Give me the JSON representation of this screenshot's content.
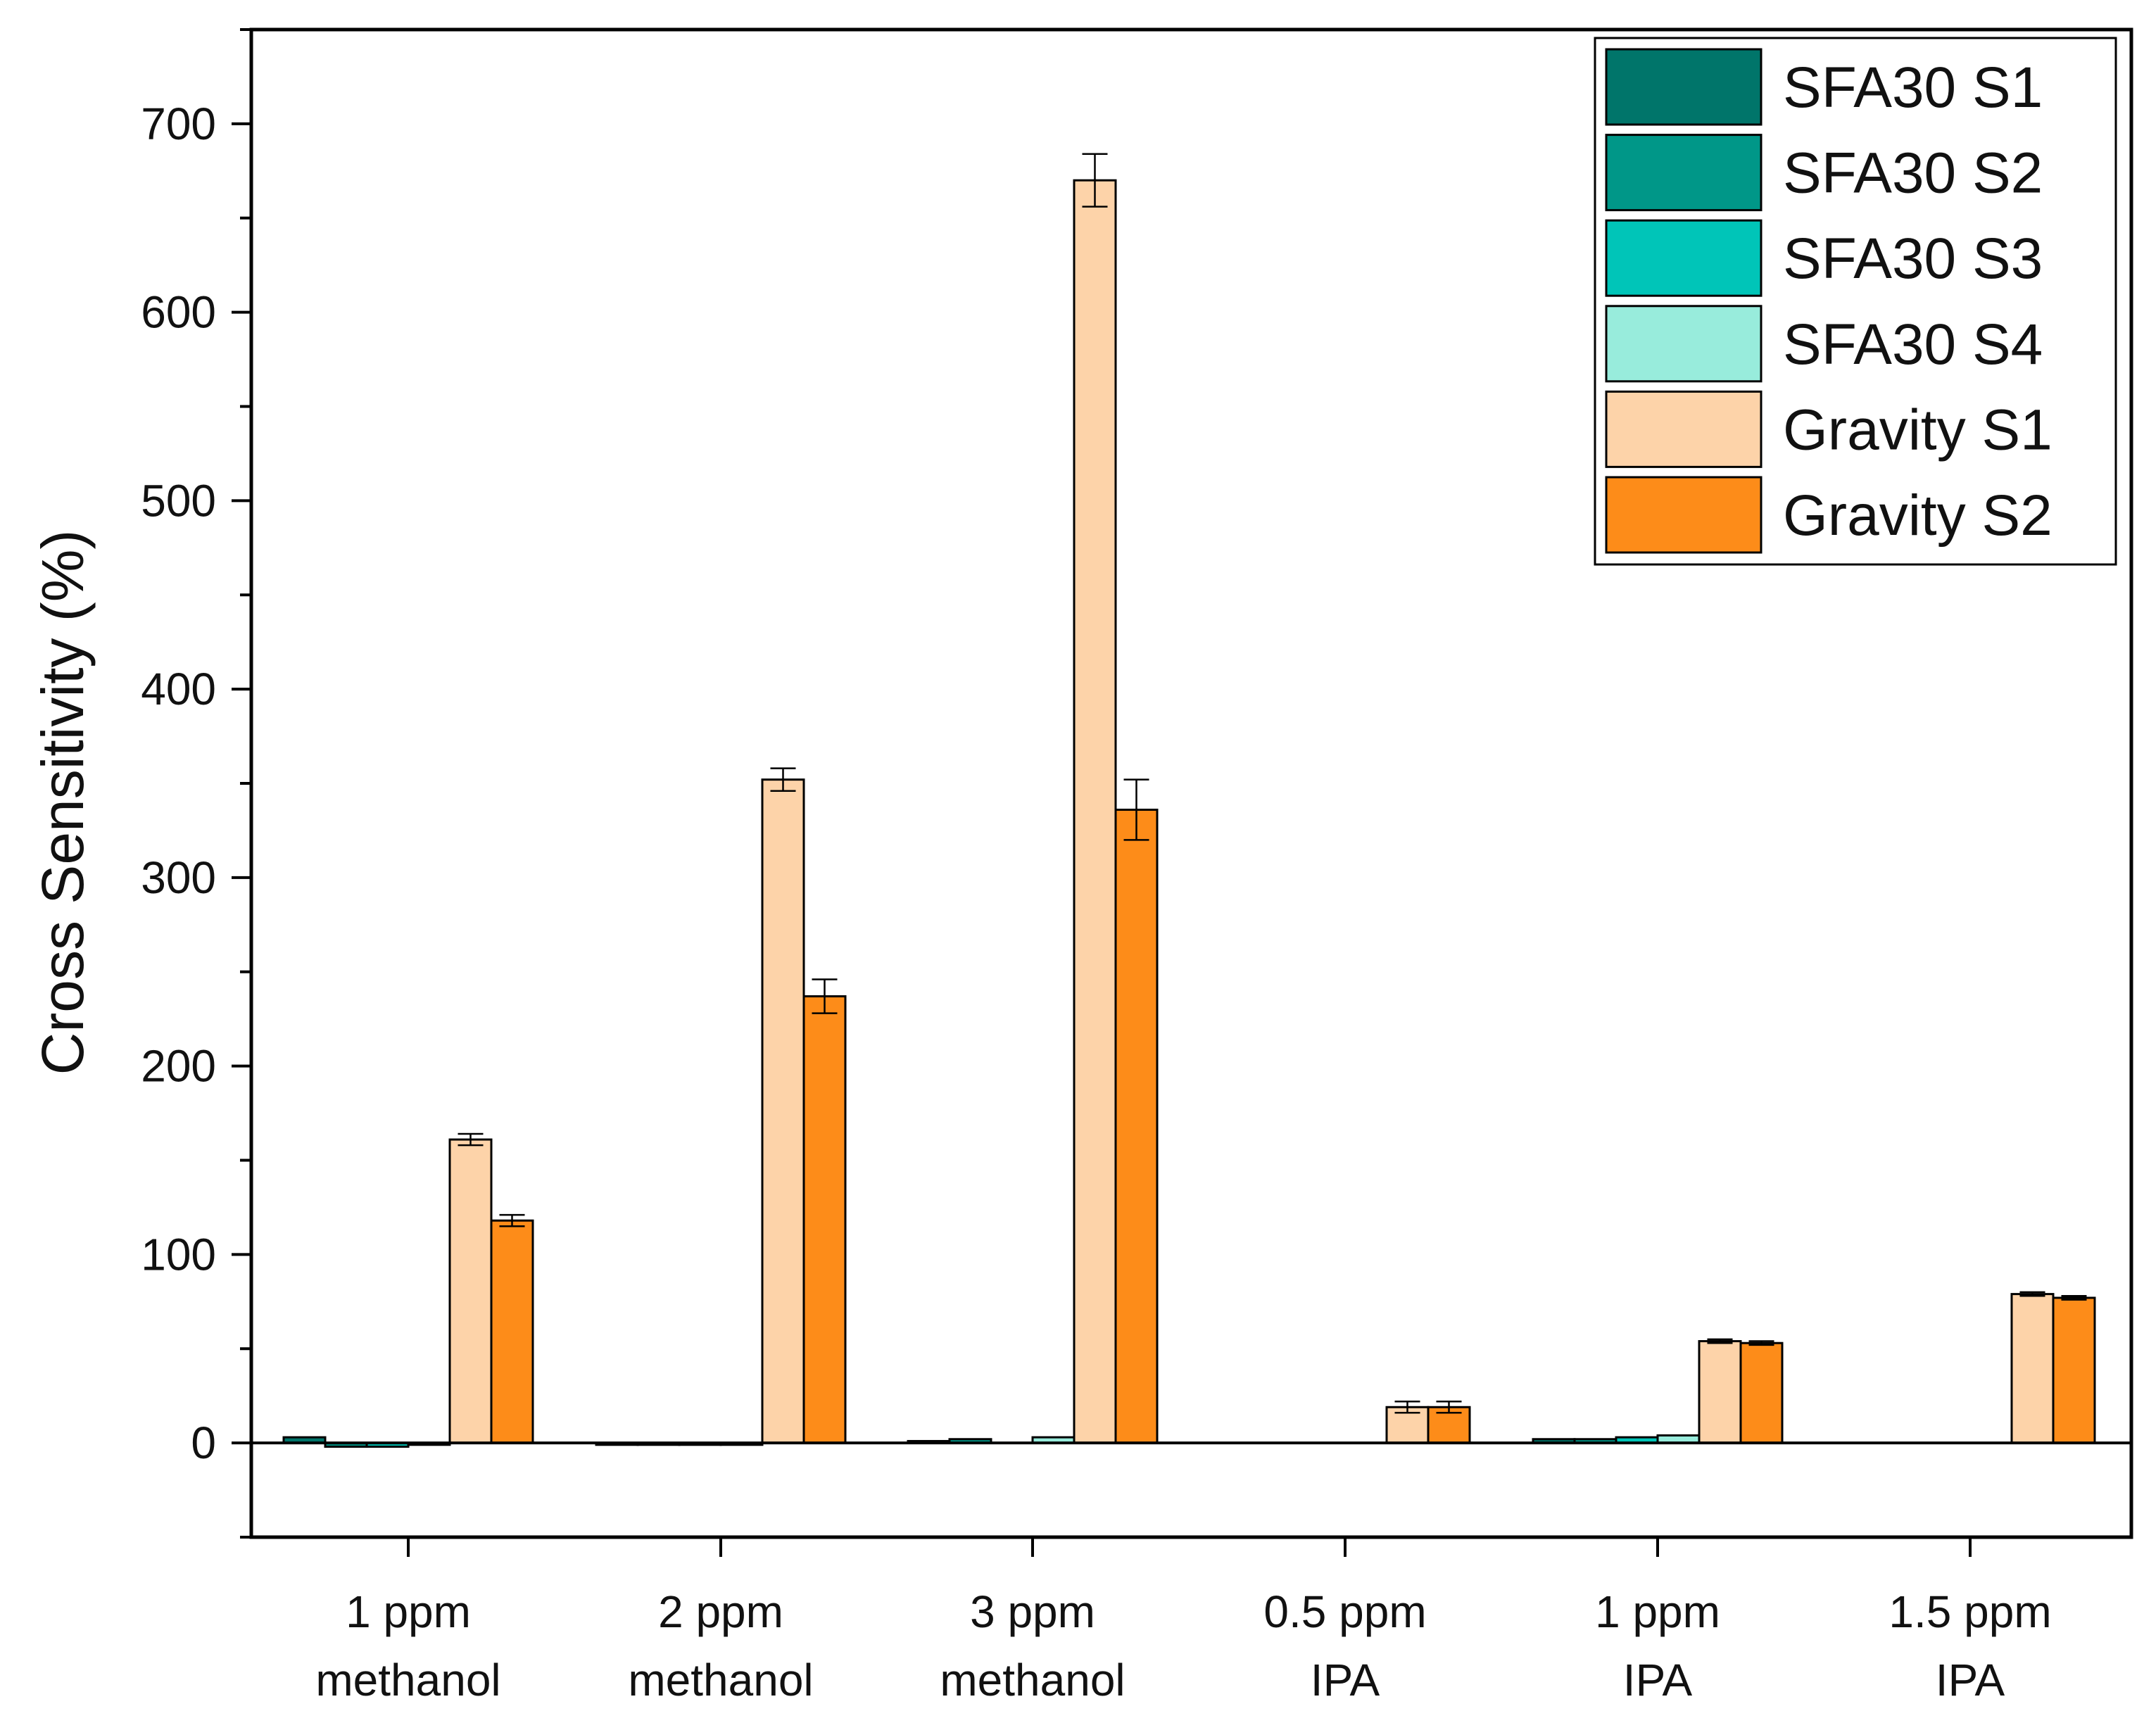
{
  "chart_data": {
    "type": "bar",
    "title": "",
    "xlabel": "",
    "ylabel": "Cross Sensitivity (%)",
    "ylim": [
      -50,
      750
    ],
    "yticks": [
      0,
      100,
      200,
      300,
      400,
      500,
      600,
      700
    ],
    "y_minor_step": 50,
    "grid": false,
    "legend_position": "top-right",
    "categories": [
      [
        "1 ppm",
        "methanol"
      ],
      [
        "2 ppm",
        "methanol"
      ],
      [
        "3 ppm",
        "methanol"
      ],
      [
        "0.5 ppm",
        "IPA"
      ],
      [
        "1 ppm",
        "IPA"
      ],
      [
        "1.5 ppm",
        "IPA"
      ]
    ],
    "series": [
      {
        "name": "SFA30 S1",
        "color": "#00756a",
        "values": [
          3,
          -1,
          1,
          0,
          2,
          0
        ],
        "errors": [
          0,
          0,
          0,
          0,
          0,
          0
        ]
      },
      {
        "name": "SFA30 S2",
        "color": "#009788",
        "values": [
          -2,
          -1,
          2,
          0,
          2,
          0
        ],
        "errors": [
          0,
          0,
          0,
          0,
          0,
          0
        ]
      },
      {
        "name": "SFA30 S3",
        "color": "#00c5b8",
        "values": [
          -2,
          -1,
          0,
          0,
          3,
          0
        ],
        "errors": [
          0,
          0,
          0,
          0,
          0,
          0
        ]
      },
      {
        "name": "SFA30 S4",
        "color": "#98ecdc",
        "values": [
          -1,
          -1,
          3,
          0,
          4,
          0
        ],
        "errors": [
          0,
          0,
          0,
          0,
          0,
          0
        ]
      },
      {
        "name": "Gravity S1",
        "color": "#fdd3a9",
        "values": [
          161,
          352,
          670,
          19,
          54,
          79
        ],
        "errors": [
          3,
          6,
          14,
          3,
          1,
          1
        ]
      },
      {
        "name": "Gravity S2",
        "color": "#fd8c19",
        "values": [
          118,
          237,
          336,
          19,
          53,
          77
        ],
        "errors": [
          3,
          9,
          16,
          3,
          1,
          1
        ]
      }
    ]
  }
}
